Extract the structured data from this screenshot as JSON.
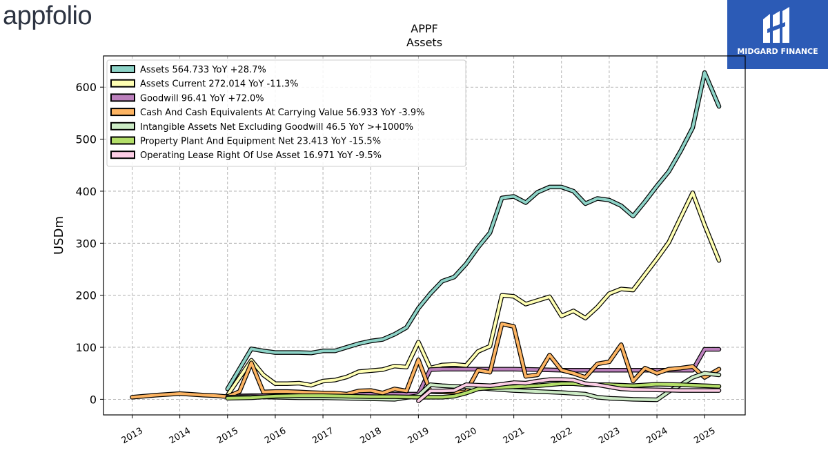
{
  "branding": {
    "left_logo": "appfolio",
    "right_logo": "MIDGARD FINANCE",
    "right_logo_bg": "#2c5bb6"
  },
  "chart_data": {
    "type": "line",
    "title": "APPF",
    "subtitle": "Assets",
    "xlabel": "",
    "ylabel": "USDm",
    "ylim": [
      -30,
      660
    ],
    "xlim": [
      2012.4,
      2025.85
    ],
    "yticks": [
      0,
      100,
      200,
      300,
      400,
      500,
      600
    ],
    "xticks": [
      "2013",
      "2014",
      "2015",
      "2016",
      "2017",
      "2018",
      "2019",
      "2020",
      "2021",
      "2022",
      "2023",
      "2024",
      "2025"
    ],
    "grid": true,
    "legend_position": "top-left",
    "series": [
      {
        "name": "Assets",
        "legend": "Assets  564.733 YoY +28.7%",
        "color": "#8dd3c7",
        "x": [
          2015.0,
          2015.5,
          2015.75,
          2016.0,
          2016.25,
          2016.5,
          2016.75,
          2017.0,
          2017.25,
          2017.5,
          2017.75,
          2018.0,
          2018.25,
          2018.5,
          2018.75,
          2019.0,
          2019.25,
          2019.5,
          2019.75,
          2020.0,
          2020.25,
          2020.5,
          2020.75,
          2021.0,
          2021.25,
          2021.5,
          2021.75,
          2022.0,
          2022.25,
          2022.5,
          2022.75,
          2023.0,
          2023.25,
          2023.5,
          2023.75,
          2024.0,
          2024.25,
          2024.5,
          2024.75,
          2025.0,
          2025.3
        ],
        "values": [
          20,
          97,
          93,
          90,
          90,
          90,
          89,
          93,
          93,
          100,
          107,
          112,
          115,
          125,
          138,
          175,
          203,
          227,
          235,
          260,
          292,
          320,
          387,
          390,
          378,
          398,
          408,
          408,
          400,
          376,
          386,
          383,
          372,
          352,
          380,
          410,
          438,
          478,
          522,
          628,
          563
        ]
      },
      {
        "name": "Assets Current",
        "legend": "Assets Current  272.014 YoY -11.3%",
        "color": "#ffffb3",
        "x": [
          2015.0,
          2015.5,
          2015.75,
          2016.0,
          2016.25,
          2016.5,
          2016.75,
          2017.0,
          2017.25,
          2017.5,
          2017.75,
          2018.0,
          2018.25,
          2018.5,
          2018.75,
          2019.0,
          2019.25,
          2019.5,
          2019.75,
          2020.0,
          2020.25,
          2020.5,
          2020.75,
          2021.0,
          2021.25,
          2021.5,
          2021.75,
          2022.0,
          2022.25,
          2022.5,
          2022.75,
          2023.0,
          2023.25,
          2023.5,
          2023.75,
          2024.0,
          2024.25,
          2024.5,
          2024.75,
          2025.0,
          2025.3
        ],
        "values": [
          8,
          75,
          47,
          30,
          30,
          31,
          27,
          35,
          37,
          43,
          53,
          55,
          57,
          64,
          62,
          110,
          60,
          66,
          67,
          65,
          92,
          102,
          200,
          198,
          183,
          190,
          197,
          160,
          170,
          156,
          177,
          203,
          212,
          210,
          240,
          270,
          302,
          350,
          397,
          335,
          267
        ]
      },
      {
        "name": "Goodwill",
        "legend": "Goodwill  96.41 YoY +72.0%",
        "color": "#bc80bd",
        "x": [
          2015.0,
          2015.5,
          2016.0,
          2016.5,
          2017.0,
          2017.5,
          2018.0,
          2018.5,
          2019.0,
          2019.25,
          2019.5,
          2020.0,
          2020.5,
          2021.0,
          2021.5,
          2022.0,
          2022.5,
          2023.0,
          2023.5,
          2024.0,
          2024.5,
          2024.75,
          2025.0,
          2025.3
        ],
        "values": [
          6,
          7,
          7,
          8,
          9,
          9,
          10,
          10,
          10,
          57,
          58,
          58,
          58,
          58,
          57,
          56,
          56,
          56,
          56,
          56,
          56,
          56,
          96,
          96
        ]
      },
      {
        "name": "Cash And Cash Equivalents At Carrying Value",
        "legend": "Cash And Cash Equivalents At Carrying Value  56.933 YoY -3.9%",
        "color": "#fdb462",
        "x": [
          2013.0,
          2013.5,
          2014.0,
          2014.5,
          2014.75,
          2015.0,
          2015.25,
          2015.5,
          2015.75,
          2016.0,
          2016.25,
          2016.5,
          2016.75,
          2017.0,
          2017.25,
          2017.5,
          2017.75,
          2018.0,
          2018.25,
          2018.5,
          2018.75,
          2019.0,
          2019.25,
          2019.5,
          2019.75,
          2020.0,
          2020.25,
          2020.5,
          2020.75,
          2021.0,
          2021.25,
          2021.5,
          2021.75,
          2022.0,
          2022.25,
          2022.5,
          2022.75,
          2023.0,
          2023.25,
          2023.5,
          2023.75,
          2024.0,
          2024.25,
          2024.5,
          2024.75,
          2025.0,
          2025.3
        ],
        "values": [
          4,
          8,
          11,
          8,
          7,
          5,
          15,
          70,
          14,
          15,
          15,
          14,
          13,
          12,
          12,
          10,
          16,
          17,
          12,
          20,
          16,
          76,
          15,
          14,
          14,
          14,
          56,
          52,
          145,
          140,
          44,
          47,
          85,
          56,
          50,
          42,
          68,
          72,
          105,
          35,
          60,
          50,
          58,
          60,
          63,
          42,
          58
        ]
      },
      {
        "name": "Intangible Assets Net Excluding Goodwill",
        "legend": "Intangible Assets Net Excluding Goodwill  46.5 YoY >+1000%",
        "color": "#ccebc5",
        "x": [
          2015.0,
          2015.5,
          2016.0,
          2016.5,
          2017.0,
          2017.5,
          2018.0,
          2018.5,
          2019.0,
          2019.25,
          2019.5,
          2019.75,
          2020.0,
          2020.5,
          2021.0,
          2021.5,
          2022.0,
          2022.5,
          2022.75,
          2023.0,
          2023.5,
          2024.0,
          2024.25,
          2024.5,
          2024.75,
          2025.0,
          2025.3
        ],
        "values": [
          4,
          5,
          4,
          3,
          3,
          2,
          1,
          0,
          7,
          28,
          26,
          25,
          24,
          20,
          17,
          15,
          13,
          10,
          4,
          2,
          0,
          -1,
          15,
          28,
          42,
          50,
          47
        ]
      },
      {
        "name": "Property Plant And Equipment Net",
        "legend": "Property Plant And Equipment Net  23.413 YoY -15.5%",
        "color": "#b3de69",
        "x": [
          2015.0,
          2015.5,
          2016.0,
          2016.5,
          2017.0,
          2017.5,
          2018.0,
          2018.5,
          2019.0,
          2019.5,
          2019.75,
          2020.0,
          2020.25,
          2020.5,
          2021.0,
          2021.5,
          2022.0,
          2022.25,
          2022.5,
          2023.0,
          2023.5,
          2024.0,
          2024.5,
          2025.0,
          2025.3
        ],
        "values": [
          2,
          3,
          6,
          7,
          7,
          6,
          5,
          5,
          4,
          4,
          6,
          12,
          20,
          22,
          24,
          26,
          30,
          30,
          28,
          28,
          26,
          29,
          28,
          26,
          25
        ]
      },
      {
        "name": "Operating Lease Right Of Use Asset",
        "legend": "Operating Lease Right Of Use Asset  16.971 YoY -9.5%",
        "color": "#fccde5",
        "x": [
          2019.0,
          2019.25,
          2019.5,
          2019.75,
          2020.0,
          2020.25,
          2020.5,
          2021.0,
          2021.25,
          2021.5,
          2021.75,
          2022.0,
          2022.25,
          2022.5,
          2022.75,
          2023.0,
          2023.25,
          2023.5,
          2024.0,
          2024.5,
          2025.0,
          2025.3
        ],
        "values": [
          -3,
          16,
          16,
          17,
          28,
          27,
          26,
          32,
          31,
          35,
          38,
          38,
          37,
          30,
          28,
          24,
          20,
          19,
          18,
          17,
          17,
          17
        ]
      }
    ]
  }
}
